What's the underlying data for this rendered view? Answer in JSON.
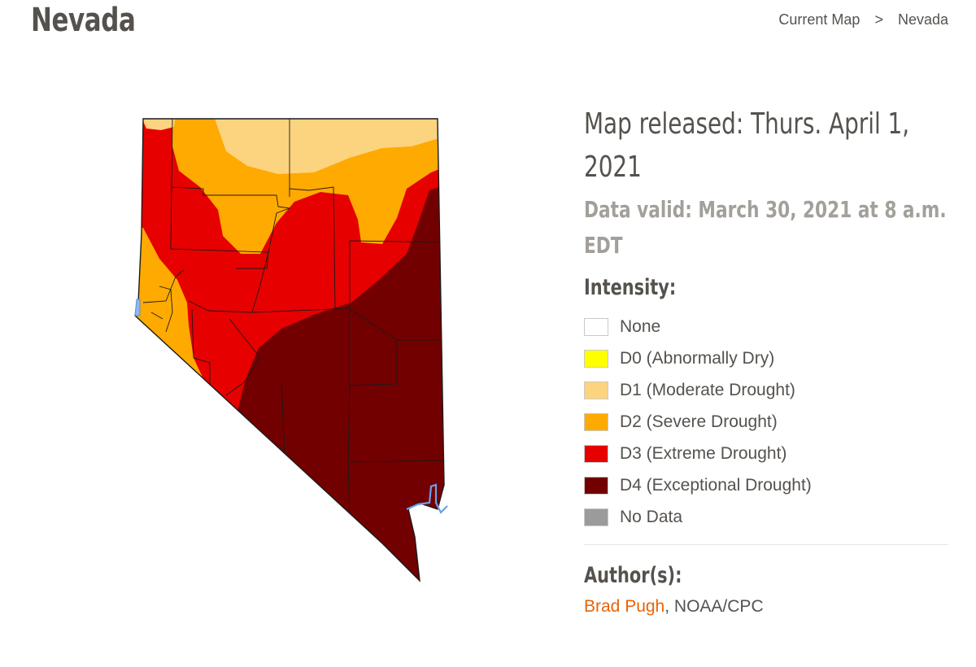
{
  "page": {
    "title": "Nevada",
    "breadcrumb": [
      {
        "label": "Current Map"
      },
      {
        "label": "Nevada"
      }
    ],
    "breadcrumb_separator": ">"
  },
  "map_info": {
    "released": "Map released: Thurs. April 1, 2021",
    "valid": "Data valid: March 30, 2021 at 8 a.m. EDT"
  },
  "legend": {
    "title": "Intensity:",
    "items": [
      {
        "label": "None",
        "color": "#ffffff"
      },
      {
        "label": "D0 (Abnormally Dry)",
        "color": "#ffff00"
      },
      {
        "label": "D1 (Moderate Drought)",
        "color": "#fcd37f"
      },
      {
        "label": "D2 (Severe Drought)",
        "color": "#ffaa00"
      },
      {
        "label": "D3 (Extreme Drought)",
        "color": "#e60000"
      },
      {
        "label": "D4 (Exceptional Drought)",
        "color": "#730000"
      },
      {
        "label": "No Data",
        "color": "#9b9b9b"
      }
    ]
  },
  "authors": {
    "title": "Author(s):",
    "name": "Brad Pugh",
    "affiliation": ", NOAA/CPC"
  },
  "map_colors": {
    "d1": "#fcd37f",
    "d2": "#ffaa00",
    "d3": "#e60000",
    "d4": "#730000",
    "water": "#8fb8f0",
    "border": "#1a1a1a"
  }
}
